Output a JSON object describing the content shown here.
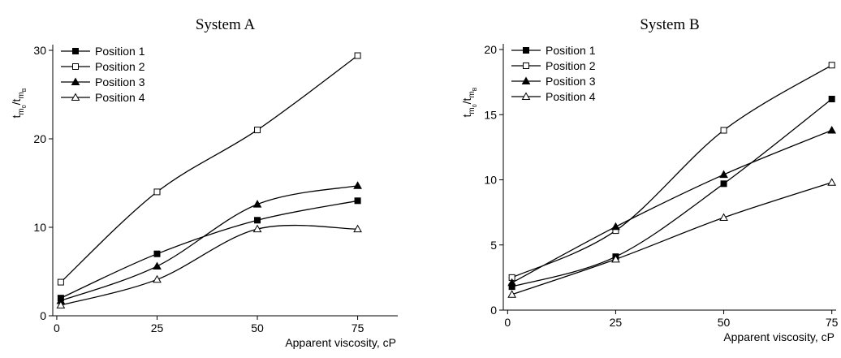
{
  "chart_data": [
    {
      "type": "line",
      "title": "System A",
      "x_label": "Apparent viscosity, cP",
      "y_label": [
        "t",
        "m",
        "0",
        "/t",
        "m",
        "B"
      ],
      "x": [
        1,
        25,
        50,
        75
      ],
      "xlim": [
        -1,
        85
      ],
      "xticks": [
        0,
        25,
        50,
        75
      ],
      "ylim": [
        0,
        30
      ],
      "yticks": [
        0,
        10,
        20,
        30
      ],
      "legend": "upper left",
      "series": [
        {
          "name": "Position 1",
          "color": "#000000",
          "marker": "square",
          "filled": true,
          "values": [
            2,
            7,
            10.8,
            13
          ]
        },
        {
          "name": "Position 2",
          "color": "#000000",
          "marker": "square",
          "filled": false,
          "values": [
            3.8,
            14,
            21,
            29.4
          ]
        },
        {
          "name": "Position 3",
          "color": "#000000",
          "marker": "triangle",
          "filled": true,
          "values": [
            1.7,
            5.6,
            12.6,
            14.7
          ]
        },
        {
          "name": "Position 4",
          "color": "#000000",
          "marker": "triangle",
          "filled": false,
          "values": [
            1.2,
            4.1,
            9.8,
            9.8
          ]
        }
      ]
    },
    {
      "type": "line",
      "title": "System B",
      "x_label": "Apparent viscosity, cP",
      "y_label": [
        "t",
        "m",
        "0",
        "/t",
        "m",
        "B"
      ],
      "x": [
        1,
        25,
        50,
        75
      ],
      "xlim": [
        -1,
        76
      ],
      "xticks": [
        0,
        25,
        50,
        75
      ],
      "ylim": [
        0,
        20
      ],
      "yticks": [
        0,
        5,
        10,
        15,
        20
      ],
      "legend": "upper left",
      "series": [
        {
          "name": "Position 1",
          "color": "#000000",
          "marker": "square",
          "filled": true,
          "values": [
            1.8,
            4.1,
            9.7,
            16.2
          ]
        },
        {
          "name": "Position 2",
          "color": "#000000",
          "marker": "square",
          "filled": false,
          "values": [
            2.5,
            6.1,
            13.8,
            18.8
          ]
        },
        {
          "name": "Position 3",
          "color": "#000000",
          "marker": "triangle",
          "filled": true,
          "values": [
            2.1,
            6.4,
            10.4,
            13.8
          ]
        },
        {
          "name": "Position 4",
          "color": "#000000",
          "marker": "triangle",
          "filled": false,
          "values": [
            1.2,
            3.9,
            7.1,
            9.8
          ]
        }
      ]
    }
  ]
}
